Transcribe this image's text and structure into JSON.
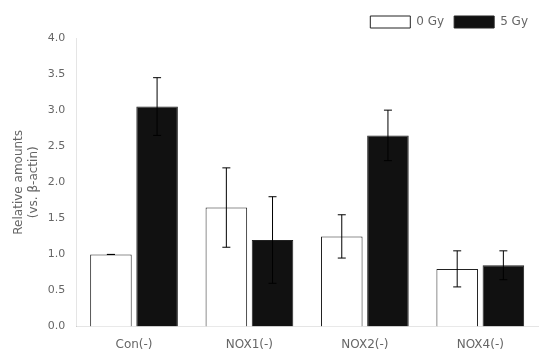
{
  "chart_data": {
    "type": "bar",
    "y_label": "Relative amounts\n(vs. β-actin)",
    "categories": [
      "Con(-)",
      "NOX1(-)",
      "NOX2(-)",
      "NOX4(-)"
    ],
    "series": [
      {
        "name": "0 Gy",
        "color": "#ffffff",
        "values": [
          1.0,
          1.65,
          1.25,
          0.8
        ],
        "errors": [
          0.0,
          0.55,
          0.3,
          0.25
        ]
      },
      {
        "name": "5 Gy",
        "color": "#111111",
        "values": [
          3.05,
          1.2,
          2.65,
          0.85
        ],
        "errors": [
          0.4,
          0.6,
          0.35,
          0.2
        ]
      }
    ],
    "ylim": [
      0,
      4
    ],
    "yticks": [
      {
        "value": 0,
        "label": "0.0"
      },
      0.5,
      {
        "value": 1,
        "label": "1.0"
      },
      1.5,
      {
        "value": 2,
        "label": "2.0"
      },
      2.5,
      {
        "value": 3,
        "label": "3.0"
      },
      3.5,
      {
        "value": 4,
        "label": "4.0"
      }
    ],
    "grid": false,
    "legend": "upper right"
  }
}
